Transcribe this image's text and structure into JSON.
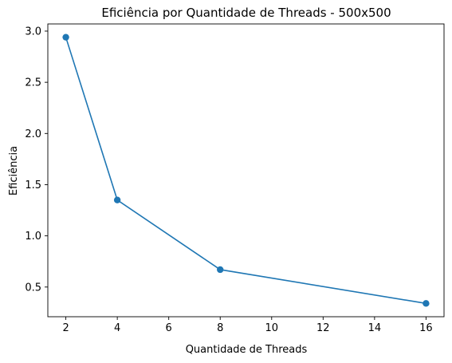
{
  "chart_data": {
    "type": "line",
    "title": "Eficiência por Quantidade de Threads - 500x500",
    "xlabel": "Quantidade de Threads",
    "ylabel": "Eficiência",
    "x": [
      2,
      4,
      8,
      16
    ],
    "series": [
      {
        "values": [
          2.94,
          1.35,
          0.67,
          0.34
        ],
        "color": "#1f77b4",
        "marker": "circle"
      }
    ],
    "xlim": [
      1.3,
      16.7
    ],
    "ylim": [
      0.21,
      3.07
    ],
    "xticks": [
      2,
      4,
      6,
      8,
      10,
      12,
      14,
      16
    ],
    "yticks": [
      0.5,
      1.0,
      1.5,
      2.0,
      2.5,
      3.0
    ],
    "ytick_labels": [
      "0.5",
      "1.0",
      "1.5",
      "2.0",
      "2.5",
      "3.0"
    ],
    "grid": false,
    "legend": "none"
  }
}
